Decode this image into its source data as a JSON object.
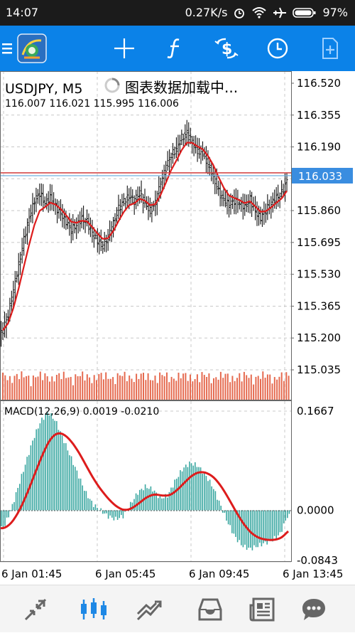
{
  "status_bar": {
    "time": "14:07",
    "net_speed": "0.27K/s",
    "battery": "97%",
    "icons": [
      "alarm-icon",
      "wifi-icon",
      "airplane-icon",
      "battery-icon"
    ]
  },
  "toolbar": {
    "icons": [
      "menu-icon",
      "app-logo-icon",
      "crosshair-icon",
      "indicators-icon",
      "symbols-icon",
      "timeframe-icon",
      "templates-icon"
    ],
    "accent": "#0b82e8"
  },
  "chart": {
    "symbol_label": "USDJPY, M5",
    "loading_text": "图表数据加载中...",
    "ohlc_text": "116.007 116.021 115.995 116.006",
    "price_ticks": [
      "116.520",
      "116.355",
      "116.190",
      "116.025",
      "115.860",
      "115.695",
      "115.530",
      "115.365",
      "115.200",
      "115.035"
    ],
    "current_price": "116.033",
    "macd_label": "MACD(12,26,9) 0.0019 -0.0210",
    "macd_ticks": [
      "0.1667",
      "0.0000",
      "-0.0843"
    ],
    "time_labels": [
      "6 Jan 01:45",
      "6 Jan 05:45",
      "6 Jan 09:45",
      "6 Jan 13:45"
    ]
  },
  "chart_data": {
    "type": "candlestick",
    "symbol": "USDJPY",
    "timeframe": "M5",
    "close_series_approx": [
      115.24,
      115.32,
      115.45,
      115.58,
      115.71,
      115.82,
      115.91,
      115.95,
      115.9,
      115.93,
      115.88,
      115.84,
      115.8,
      115.76,
      115.79,
      115.82,
      115.8,
      115.74,
      115.7,
      115.68,
      115.72,
      115.8,
      115.87,
      115.91,
      115.93,
      115.91,
      115.95,
      115.9,
      115.86,
      115.9,
      116.0,
      116.08,
      116.15,
      116.18,
      116.24,
      116.26,
      116.21,
      116.17,
      116.16,
      116.1,
      116.04,
      115.96,
      115.91,
      115.89,
      115.91,
      115.9,
      115.88,
      115.92,
      115.85,
      115.82,
      115.86,
      115.9,
      115.93,
      115.95,
      116.01
    ],
    "macd_hist_approx": [
      -0.03,
      0.0,
      0.04,
      0.08,
      0.12,
      0.15,
      0.165,
      0.15,
      0.12,
      0.09,
      0.06,
      0.03,
      0.01,
      0.0,
      -0.01,
      -0.015,
      -0.01,
      0.01,
      0.03,
      0.04,
      0.035,
      0.02,
      0.025,
      0.05,
      0.07,
      0.08,
      0.075,
      0.06,
      0.04,
      0.01,
      -0.02,
      -0.045,
      -0.06,
      -0.065,
      -0.06,
      -0.055,
      -0.05,
      -0.04,
      -0.01
    ],
    "y_range": [
      115.035,
      116.52
    ],
    "macd_range": [
      -0.0843,
      0.1667
    ]
  },
  "bottom_nav": {
    "items": [
      "quotes-icon",
      "chart-icon",
      "trade-icon",
      "history-icon",
      "news-icon",
      "chat-icon"
    ],
    "active": "chart-icon"
  }
}
